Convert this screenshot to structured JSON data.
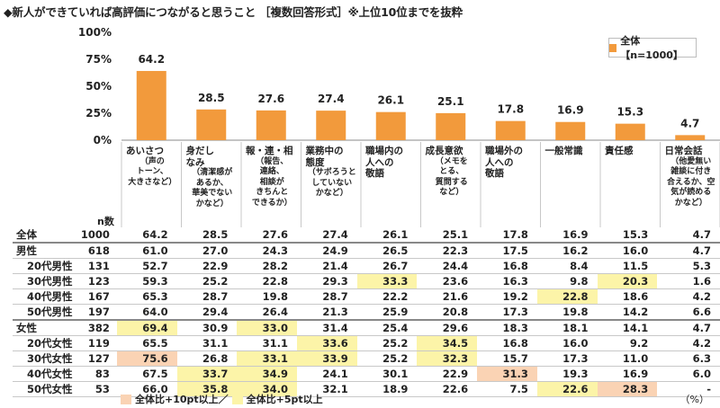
{
  "title": "◆新人ができていれば高評価につながると思うこと ［複数回答形式］※上位10位までを抜粋",
  "legend": "全体【n=1000】",
  "n_header": "n数",
  "unit": "（%）",
  "footer": {
    "hi10": "全体比+10pt以上／",
    "hi5": "全体比+5pt以上"
  },
  "colors": {
    "bar": "#f29a3c",
    "hi10": "#fad3b4",
    "hi5": "#fcf4a8"
  },
  "chart_data": {
    "type": "bar",
    "ylim": [
      0,
      100
    ],
    "yticks": [
      "0%",
      "25%",
      "50%",
      "75%",
      "100%"
    ],
    "categories": [
      {
        "main": [
          "あいさつ"
        ],
        "sub": [
          "（声の",
          "トーン、",
          "大きさなど）"
        ]
      },
      {
        "main": [
          "身だし",
          "なみ"
        ],
        "sub": [
          "（清潔感が",
          "あるか、",
          "華美でない",
          "かなど）"
        ]
      },
      {
        "main": [
          "報・連・相"
        ],
        "sub": [
          "（報告、",
          "連絡、",
          "相談が",
          "きちんと",
          "できるか）"
        ]
      },
      {
        "main": [
          "業務中の",
          "態度"
        ],
        "sub": [
          "（サボろうと",
          "していない",
          "かなど）"
        ]
      },
      {
        "main": [
          "職場内の",
          "人への",
          "敬語"
        ],
        "sub": []
      },
      {
        "main": [
          "成長意欲"
        ],
        "sub": [
          "（メモを",
          "とる、",
          "質問する",
          "など）"
        ]
      },
      {
        "main": [
          "職場外の",
          "人への",
          "敬語"
        ],
        "sub": []
      },
      {
        "main": [
          "一般常識"
        ],
        "sub": []
      },
      {
        "main": [
          "責任感"
        ],
        "sub": []
      },
      {
        "main": [
          "日常会話"
        ],
        "sub": [
          "（他愛無い",
          "雑談に付き",
          "合えるか、空",
          "気が読める",
          "かなど）"
        ]
      }
    ],
    "values": [
      64.2,
      28.5,
      27.6,
      27.4,
      26.1,
      25.1,
      17.8,
      16.9,
      15.3,
      4.7
    ],
    "value_labels": [
      "64.2",
      "28.5",
      "27.6",
      "27.4",
      "26.1",
      "25.1",
      "17.8",
      "16.9",
      "15.3",
      "4.7"
    ],
    "series": [
      {
        "name": "全体【n=1000】",
        "values": [
          64.2,
          28.5,
          27.6,
          27.4,
          26.1,
          25.1,
          17.8,
          16.9,
          15.3,
          4.7
        ]
      }
    ]
  },
  "table": [
    {
      "label": "全体",
      "sub": false,
      "n": "1000",
      "values": [
        "64.2",
        "28.5",
        "27.6",
        "27.4",
        "26.1",
        "25.1",
        "17.8",
        "16.9",
        "15.3",
        "4.7"
      ],
      "hl": [
        "",
        "",
        "",
        "",
        "",
        "",
        "",
        "",
        "",
        ""
      ]
    },
    {
      "label": "男性",
      "sub": false,
      "n": "618",
      "values": [
        "61.0",
        "27.0",
        "24.3",
        "24.9",
        "26.5",
        "22.3",
        "17.5",
        "16.2",
        "16.0",
        "4.7"
      ],
      "hl": [
        "",
        "",
        "",
        "",
        "",
        "",
        "",
        "",
        "",
        ""
      ]
    },
    {
      "label": "20代男性",
      "sub": true,
      "n": "131",
      "values": [
        "52.7",
        "22.9",
        "28.2",
        "21.4",
        "26.7",
        "24.4",
        "16.8",
        "8.4",
        "11.5",
        "5.3"
      ],
      "hl": [
        "",
        "",
        "",
        "",
        "",
        "",
        "",
        "",
        "",
        ""
      ]
    },
    {
      "label": "30代男性",
      "sub": true,
      "n": "123",
      "values": [
        "59.3",
        "25.2",
        "22.8",
        "29.3",
        "33.3",
        "23.6",
        "16.3",
        "9.8",
        "20.3",
        "1.6"
      ],
      "hl": [
        "",
        "",
        "",
        "",
        "hi5",
        "",
        "",
        "",
        "hi5",
        ""
      ]
    },
    {
      "label": "40代男性",
      "sub": true,
      "n": "167",
      "values": [
        "65.3",
        "28.7",
        "19.8",
        "28.7",
        "22.2",
        "21.6",
        "19.2",
        "22.8",
        "18.6",
        "4.2"
      ],
      "hl": [
        "",
        "",
        "",
        "",
        "",
        "",
        "",
        "hi5",
        "",
        ""
      ]
    },
    {
      "label": "50代男性",
      "sub": true,
      "n": "197",
      "values": [
        "64.0",
        "29.4",
        "26.4",
        "21.3",
        "25.9",
        "20.8",
        "17.3",
        "19.8",
        "14.2",
        "6.6"
      ],
      "hl": [
        "",
        "",
        "",
        "",
        "",
        "",
        "",
        "",
        "",
        ""
      ]
    },
    {
      "label": "女性",
      "sub": false,
      "n": "382",
      "values": [
        "69.4",
        "30.9",
        "33.0",
        "31.4",
        "25.4",
        "29.6",
        "18.3",
        "18.1",
        "14.1",
        "4.7"
      ],
      "hl": [
        "hi5",
        "",
        "hi5",
        "",
        "",
        "",
        "",
        "",
        "",
        ""
      ]
    },
    {
      "label": "20代女性",
      "sub": true,
      "n": "119",
      "values": [
        "65.5",
        "31.1",
        "31.1",
        "33.6",
        "25.2",
        "34.5",
        "16.8",
        "16.0",
        "9.2",
        "4.2"
      ],
      "hl": [
        "",
        "",
        "",
        "hi5",
        "",
        "hi5",
        "",
        "",
        "",
        ""
      ]
    },
    {
      "label": "30代女性",
      "sub": true,
      "n": "127",
      "values": [
        "75.6",
        "26.8",
        "33.1",
        "33.9",
        "25.2",
        "32.3",
        "15.7",
        "17.3",
        "11.0",
        "6.3"
      ],
      "hl": [
        "hi10",
        "",
        "hi5",
        "hi5",
        "",
        "hi5",
        "",
        "",
        "",
        ""
      ]
    },
    {
      "label": "40代女性",
      "sub": true,
      "n": "83",
      "values": [
        "67.5",
        "33.7",
        "34.9",
        "24.1",
        "30.1",
        "22.9",
        "31.3",
        "19.3",
        "16.9",
        "6.0"
      ],
      "hl": [
        "",
        "hi5",
        "hi5",
        "",
        "",
        "",
        "hi10",
        "",
        "",
        ""
      ]
    },
    {
      "label": "50代女性",
      "sub": true,
      "n": "53",
      "values": [
        "66.0",
        "35.8",
        "34.0",
        "32.1",
        "18.9",
        "22.6",
        "7.5",
        "22.6",
        "28.3",
        "-"
      ],
      "hl": [
        "",
        "hi5",
        "hi5",
        "",
        "",
        "",
        "",
        "hi5",
        "hi10",
        ""
      ]
    }
  ]
}
